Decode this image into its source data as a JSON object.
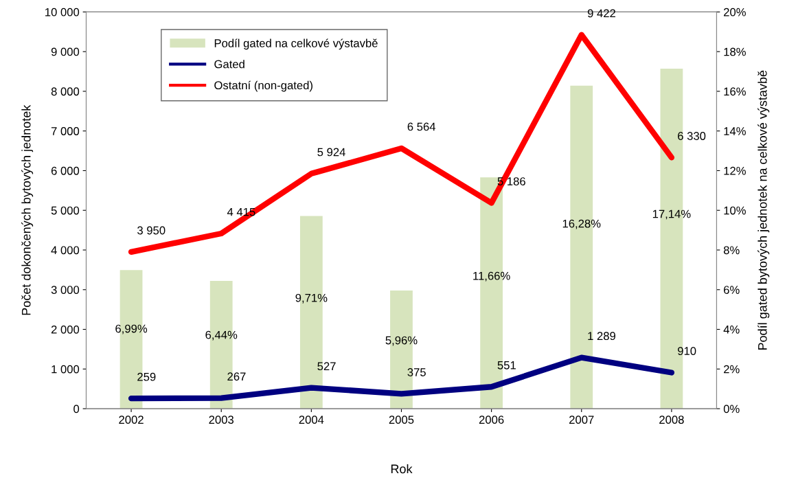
{
  "chart_data": {
    "type": "bar",
    "xlabel": "Rok",
    "ylabel": "Počet dokončených bytových jednotek",
    "y2label": "Podíl gated bytových jednotek na celkové výstavbě",
    "categories": [
      "2002",
      "2003",
      "2004",
      "2005",
      "2006",
      "2007",
      "2008"
    ],
    "series": [
      {
        "name": "Podíl gated na celkové výstavbě",
        "axis": "y2",
        "color": "#d7e4bd",
        "values": [
          6.99,
          6.44,
          9.71,
          5.96,
          11.66,
          16.28,
          17.14
        ],
        "value_labels": [
          "6,99%",
          "6,44%",
          "9,71%",
          "5,96%",
          "11,66%",
          "16,28%",
          "17,14%"
        ]
      },
      {
        "name": "Gated",
        "type": "line",
        "color": "#000080",
        "values": [
          259,
          267,
          527,
          375,
          551,
          1289,
          910
        ],
        "value_labels": [
          "259",
          "267",
          "527",
          "375",
          "551",
          "1 289",
          "910"
        ]
      },
      {
        "name": "Ostatní (non-gated)",
        "type": "line",
        "color": "#ff0000",
        "values": [
          3950,
          4415,
          5924,
          6564,
          5186,
          9422,
          6330
        ],
        "value_labels": [
          "3 950",
          "4 415",
          "5 924",
          "6 564",
          "5 186",
          "9 422",
          "6 330"
        ]
      }
    ],
    "ylim": [
      0,
      10000
    ],
    "yticks": [
      {
        "value": 0,
        "label": "0"
      },
      {
        "value": 1000,
        "label": "1 000"
      },
      {
        "value": 2000,
        "label": "2 000"
      },
      {
        "value": 3000,
        "label": "3 000"
      },
      {
        "value": 4000,
        "label": "4 000"
      },
      {
        "value": 5000,
        "label": "5 000"
      },
      {
        "value": 6000,
        "label": "6 000"
      },
      {
        "value": 7000,
        "label": "7 000"
      },
      {
        "value": 8000,
        "label": "8 000"
      },
      {
        "value": 9000,
        "label": "9 000"
      },
      {
        "value": 10000,
        "label": "10 000"
      }
    ],
    "y2lim": [
      0,
      20
    ],
    "y2ticks": [
      {
        "value": 0,
        "label": "0%"
      },
      {
        "value": 2,
        "label": "2%"
      },
      {
        "value": 4,
        "label": "4%"
      },
      {
        "value": 6,
        "label": "6%"
      },
      {
        "value": 8,
        "label": "8%"
      },
      {
        "value": 10,
        "label": "10%"
      },
      {
        "value": 12,
        "label": "12%"
      },
      {
        "value": 14,
        "label": "14%"
      },
      {
        "value": 16,
        "label": "16%"
      },
      {
        "value": 18,
        "label": "18%"
      },
      {
        "value": 20,
        "label": "20%"
      }
    ],
    "legend": "top left",
    "grid": false
  }
}
